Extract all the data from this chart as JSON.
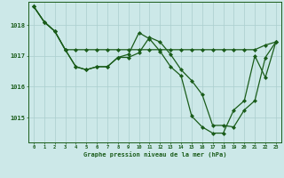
{
  "title": "Graphe pression niveau de la mer (hPa)",
  "bg_color": "#cce8e8",
  "grid_color": "#aacece",
  "line_color": "#1a5c1a",
  "marker_color": "#1a5c1a",
  "x_ticks": [
    0,
    1,
    2,
    3,
    4,
    5,
    6,
    7,
    8,
    9,
    10,
    11,
    12,
    13,
    14,
    15,
    16,
    17,
    18,
    19,
    20,
    21,
    22,
    23
  ],
  "ylim": [
    1014.2,
    1018.75
  ],
  "yticks": [
    1015,
    1016,
    1017,
    1018
  ],
  "line1": [
    1018.6,
    1018.1,
    1017.8,
    1017.2,
    1016.65,
    1016.55,
    1016.65,
    1016.65,
    1016.95,
    1017.05,
    1017.75,
    1017.55,
    1017.15,
    1016.65,
    1016.35,
    1015.05,
    1014.7,
    1014.5,
    1014.5,
    1015.25,
    1015.55,
    1017.0,
    1016.3,
    1017.45
  ],
  "line2": [
    1018.6,
    1018.1,
    1017.8,
    1017.2,
    1017.2,
    1017.2,
    1017.2,
    1017.2,
    1017.2,
    1017.2,
    1017.2,
    1017.2,
    1017.2,
    1017.2,
    1017.2,
    1017.2,
    1017.2,
    1017.2,
    1017.2,
    1017.2,
    1017.2,
    1017.2,
    1017.35,
    1017.45
  ],
  "line3": [
    1018.6,
    1018.1,
    1017.8,
    1017.2,
    1016.65,
    1016.55,
    1016.65,
    1016.65,
    1016.95,
    1016.95,
    1017.1,
    1017.6,
    1017.45,
    1017.05,
    1016.55,
    1016.2,
    1015.75,
    1014.75,
    1014.75,
    1014.7,
    1015.25,
    1015.55,
    1016.95,
    1017.45
  ]
}
